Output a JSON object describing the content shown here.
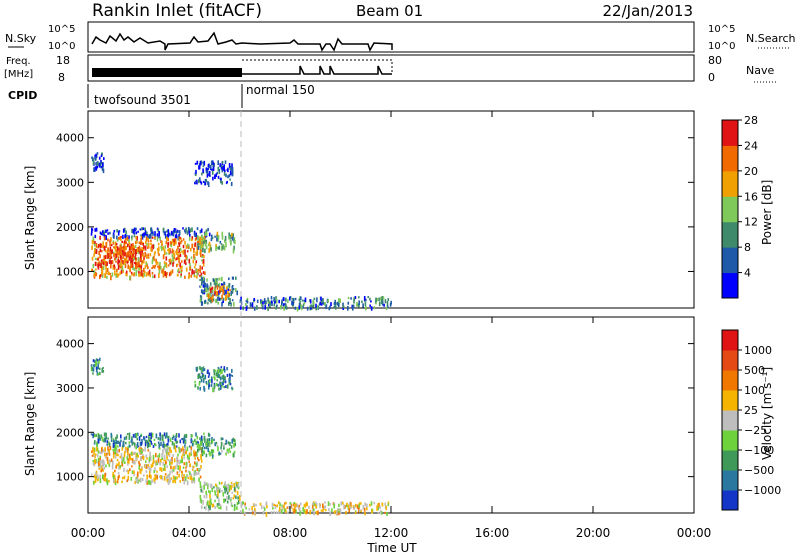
{
  "header": {
    "title": "Rankin Inlet (fitACF)",
    "beam": "Beam 01",
    "date": "22/Jan/2013"
  },
  "labels": {
    "nsky": "N.Sky",
    "nsearch": "N.Search",
    "freq_top": "Freq.",
    "freq_bot": "[MHz]",
    "nave": "Nave",
    "cpid": "CPID",
    "slant_range": "Slant Range [km]",
    "time_ut": "Time UT",
    "power_label": "Power [dB]",
    "velocity_label": "Velocity [m s⁻¹]"
  },
  "scales": {
    "nsky_left_top": "10^5",
    "nsky_left_bot": "10^0",
    "nsky_right_top": "10^5",
    "nsky_right_bot": "10^0",
    "freq_left_top": "18",
    "freq_left_bot": "8",
    "nave_right_top": "80",
    "nave_right_bot": "0"
  },
  "cpid_modes": [
    {
      "label": "twofsound 3501",
      "start": 0,
      "end": 6
    },
    {
      "label": "normal 150",
      "start": 6,
      "end": 12
    }
  ],
  "chart_data": [
    {
      "type": "heatmap",
      "name": "power-panel",
      "xlabel": "Time UT",
      "ylabel": "Slant Range [km]",
      "xlim": [
        0,
        24
      ],
      "ylim": [
        180,
        4600
      ],
      "x_ticks": [
        "00:00",
        "04:00",
        "08:00",
        "12:00",
        "16:00",
        "20:00",
        "00:00"
      ],
      "y_ticks": [
        1000,
        2000,
        3000,
        4000
      ],
      "colorbar_label": "Power [dB]",
      "colorbar_ticks": [
        "4",
        "8",
        "12",
        "16",
        "20",
        "24",
        "28"
      ],
      "colorbar_colors": [
        "#0000ff",
        "#1e5aa8",
        "#3f8a6a",
        "#7fc95a",
        "#f0a000",
        "#f06a00",
        "#e01414"
      ],
      "regions": [
        {
          "t0": 0.1,
          "t1": 0.6,
          "r0": 3300,
          "r1": 3700,
          "level": 1
        },
        {
          "t0": 0.1,
          "t1": 4.8,
          "r0": 1800,
          "r1": 2000,
          "level": 1
        },
        {
          "t0": 0.1,
          "t1": 4.6,
          "r0": 900,
          "r1": 1800,
          "level": 5
        },
        {
          "t0": 0.3,
          "t1": 2.2,
          "r0": 1150,
          "r1": 1650,
          "level": 6
        },
        {
          "t0": 4.2,
          "t1": 5.7,
          "r0": 3000,
          "r1": 3500,
          "level": 1
        },
        {
          "t0": 4.3,
          "t1": 5.8,
          "r0": 1500,
          "r1": 1900,
          "level": 3
        },
        {
          "t0": 4.4,
          "t1": 5.9,
          "r0": 300,
          "r1": 900,
          "level": 2
        },
        {
          "t0": 4.6,
          "t1": 5.6,
          "r0": 400,
          "r1": 700,
          "level": 5
        },
        {
          "t0": 6.0,
          "t1": 12.0,
          "r0": 200,
          "r1": 450,
          "level": 2
        }
      ],
      "grid": false
    },
    {
      "type": "heatmap",
      "name": "velocity-panel",
      "xlabel": "Time UT",
      "ylabel": "Slant Range [km]",
      "xlim": [
        0,
        24
      ],
      "ylim": [
        180,
        4600
      ],
      "x_ticks": [
        "00:00",
        "04:00",
        "08:00",
        "12:00",
        "16:00",
        "20:00",
        "00:00"
      ],
      "y_ticks": [
        1000,
        2000,
        3000,
        4000
      ],
      "colorbar_label": "Velocity [m s⁻¹]",
      "colorbar_ticks": [
        "1000",
        "500",
        "100",
        "25",
        "−25",
        "−100",
        "−500",
        "−1000"
      ],
      "colorbar_colors": [
        "#1436c8",
        "#2a78a0",
        "#3f9a5a",
        "#6ed23c",
        "#bebebe",
        "#f5b400",
        "#f07800",
        "#e64a14",
        "#e01414"
      ],
      "regions": [
        {
          "t0": 0.1,
          "t1": 0.6,
          "r0": 3300,
          "r1": 3700,
          "level": 2
        },
        {
          "t0": 0.1,
          "t1": 4.8,
          "r0": 1700,
          "r1": 2000,
          "level": 2
        },
        {
          "t0": 0.1,
          "t1": 4.5,
          "r0": 900,
          "r1": 1700,
          "level": 5
        },
        {
          "t0": 4.2,
          "t1": 5.7,
          "r0": 3000,
          "r1": 3500,
          "level": 2
        },
        {
          "t0": 4.3,
          "t1": 5.8,
          "r0": 1500,
          "r1": 1900,
          "level": 3
        },
        {
          "t0": 4.4,
          "t1": 6.0,
          "r0": 300,
          "r1": 900,
          "level": 4
        },
        {
          "t0": 6.0,
          "t1": 12.0,
          "r0": 200,
          "r1": 450,
          "level": 5
        }
      ],
      "grid": false
    }
  ]
}
